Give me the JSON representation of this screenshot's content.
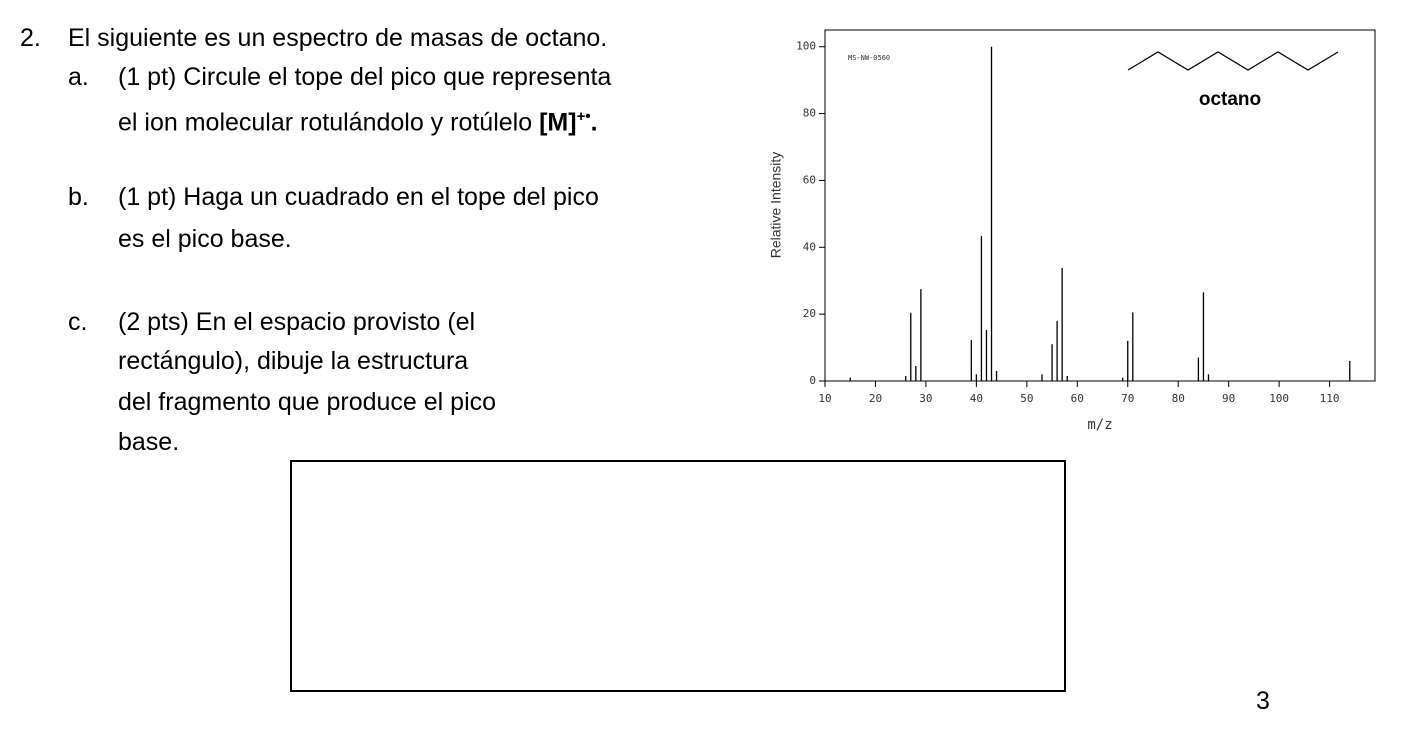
{
  "question": {
    "number": "2.",
    "text": "El siguiente es un espectro de masas de octano.",
    "items": [
      {
        "label": "a.",
        "lines": [
          "(1 pt) Circule el tope del pico que representa",
          "el ion molecular rotulándolo y rotúlelo"
        ],
        "bold": "[M]",
        "superscript": "+•",
        "after": "."
      },
      {
        "label": "b.",
        "lines": [
          "(1 pt) Haga un cuadrado en el tope del pico",
          "es el pico base."
        ]
      },
      {
        "label": "c.",
        "lines": [
          "(2 pts) En el espacio provisto (el",
          "rectángulo), dibuje la estructura",
          "del fragmento que produce el pico",
          "base."
        ]
      }
    ]
  },
  "chart_data": {
    "type": "bar",
    "annotation": "MS-NW-0560",
    "structure_label": "octano",
    "x_label": "m/z",
    "y_label": "Relative Intensity",
    "x": [
      15,
      26,
      27,
      28,
      29,
      39,
      40,
      41,
      42,
      43,
      44,
      53,
      55,
      56,
      57,
      58,
      69,
      70,
      71,
      84,
      85,
      86,
      114
    ],
    "values": [
      1,
      1.5,
      20.4,
      4.5,
      27.5,
      12.3,
      2,
      43.4,
      15.3,
      100,
      3,
      2,
      11,
      18,
      33.8,
      1.5,
      1,
      12,
      20.5,
      7,
      26.5,
      2,
      6
    ],
    "color": "#000000",
    "xlim": [
      10,
      119
    ],
    "xticks": [
      10,
      20,
      30,
      40,
      50,
      60,
      70,
      80,
      90,
      100,
      110
    ],
    "ylim": [
      0,
      105
    ],
    "yticks": [
      0,
      20,
      40,
      60,
      80,
      100
    ]
  },
  "page_number": "3"
}
